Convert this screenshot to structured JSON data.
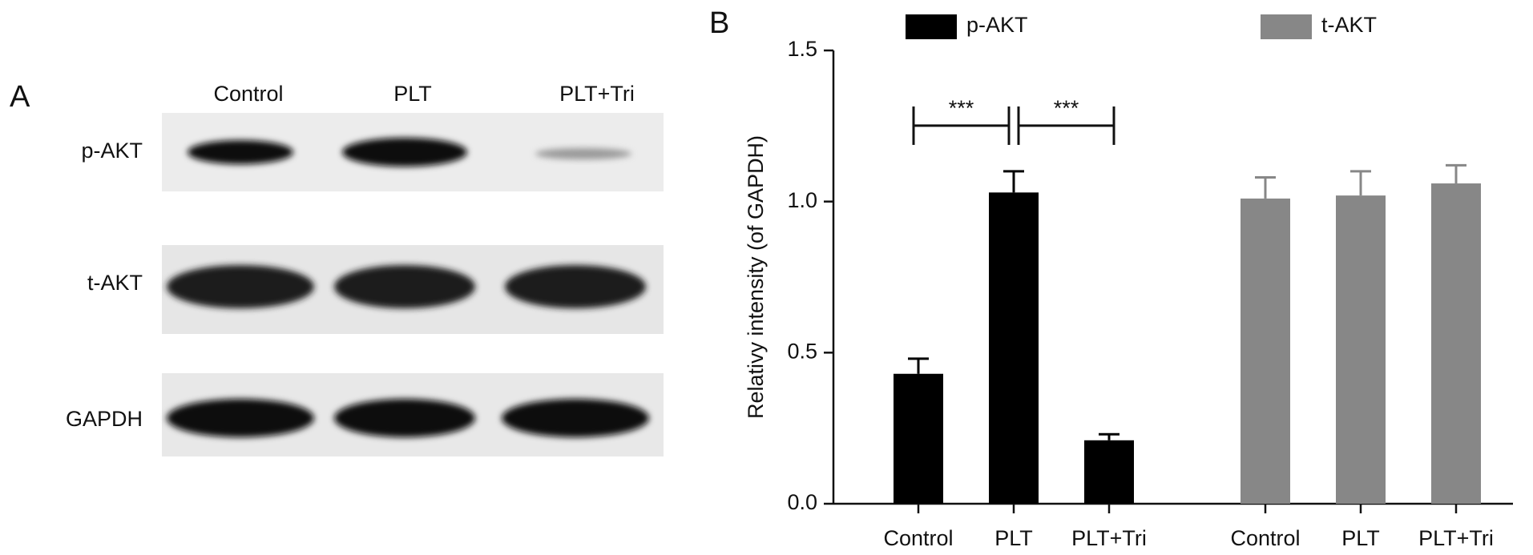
{
  "blot": {
    "label": "A",
    "columns": [
      "Control",
      "PLT",
      "PLT+Tri"
    ],
    "rows": [
      "p-AKT",
      "t-AKT",
      "GAPDH"
    ]
  },
  "chart_data": {
    "type": "bar",
    "label": "B",
    "ylabel": "Relativy intensity (of GAPDH)",
    "categories": [
      "Control",
      "PLT",
      "PLT+Tri",
      "Control",
      "PLT",
      "PLT+Tri"
    ],
    "series": [
      {
        "name": "p-AKT",
        "color": "#000000",
        "values": [
          0.43,
          1.03,
          0.21,
          null,
          null,
          null
        ],
        "errors": [
          0.05,
          0.07,
          0.02,
          null,
          null,
          null
        ]
      },
      {
        "name": "t-AKT",
        "color": "#878787",
        "values": [
          null,
          null,
          null,
          1.01,
          1.02,
          1.06
        ],
        "errors": [
          null,
          null,
          null,
          0.07,
          0.08,
          0.06
        ]
      }
    ],
    "annotations": [
      "***",
      "***"
    ],
    "ylim": [
      0,
      1.5
    ],
    "yticks": [
      {
        "value": 0,
        "label": "0.0"
      },
      {
        "value": 0.5,
        "label": "0.5"
      },
      {
        "value": 1,
        "label": "1.0"
      },
      {
        "value": 1.5,
        "label": "1.5"
      }
    ],
    "legend": "top",
    "grid": false
  }
}
